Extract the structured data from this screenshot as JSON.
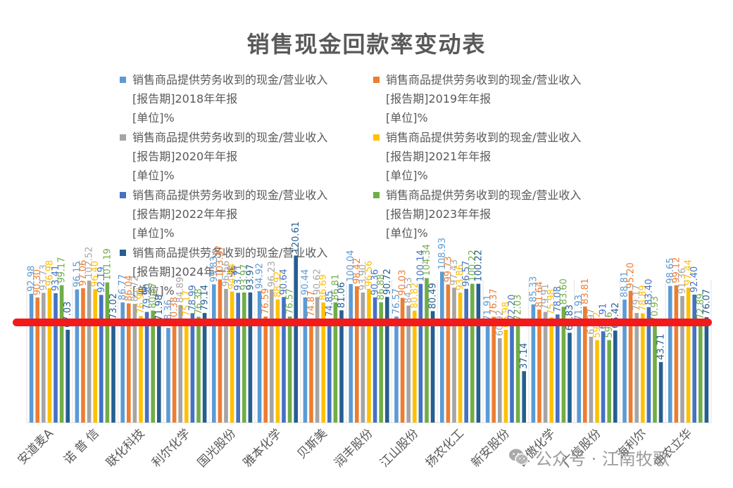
{
  "chart_data": {
    "type": "bar",
    "title": "销售现金回款率变动表",
    "categories": [
      "安道麦A",
      "诺 普 信",
      "联化科技",
      "利尔化学",
      "国光股份",
      "雅本化学",
      "贝斯美",
      "润丰股份",
      "江山股份",
      "扬农化工",
      "新安股份",
      "百傲化学",
      "广信股份",
      "海利尔",
      "中农立华"
    ],
    "series": [
      {
        "name": "销售商品提供劳务收到的现金/营业收入\n[报告期]2018年年报\n[单位]%",
        "color": "#5b9bd5",
        "values": [
          92.98,
          96.15,
          86.77,
          68.36,
          99.83,
          94.92,
          90.44,
          100.04,
          76.57,
          108.93,
          71.91,
          85.33,
          71.93,
          88.81,
          98.65
        ]
      },
      {
        "name": "销售商品提供劳务收到的现金/营业收入\n[报告期]2019年年报\n[单位]%",
        "color": "#ed7d31",
        "values": [
          90.3,
          97.06,
          86.04,
          70.38,
          103.37,
          76.59,
          74.87,
          98.42,
          90.03,
          99.73,
          76.37,
          81.64,
          83.81,
          95.2,
          99.12
        ]
      },
      {
        "name": "销售商品提供劳务收到的现金/营业收入\n[报告期]2020年年报\n[单位]%",
        "color": "#a5a5a5",
        "values": [
          93.73,
          102.52,
          85.72,
          84.89,
          96.56,
          96.23,
          90.62,
          93.9,
          84.53,
          97.43,
          60.92,
          79.91,
          61.97,
          79.17,
          91.36
        ]
      },
      {
        "name": "销售商品提供劳务收到的现金/营业收入\n[报告期]2021年年报\n[单位]%",
        "color": "#ffc000",
        "values": [
          96.98,
          96.4,
          76.91,
          75.17,
          94.64,
          88.92,
          86.69,
          96.56,
          80.82,
          93.86,
          66.98,
          75.98,
          59.52,
          78.89,
          97.44
        ]
      },
      {
        "name": "销售商品提供劳务收到的现金/营业收入\n[报告期]2022年年报\n[单位]%",
        "color": "#4472c4",
        "values": [
          93.41,
          92.19,
          79.9,
          78.99,
          93.71,
          90.64,
          74.85,
          90.36,
          100.14,
          96.57,
          72.2,
          78.08,
          65.91,
          83.4,
          92.4
        ]
      },
      {
        "name": "销售商品提供劳务收到的现金/营业收入\n[报告期]2023年年报\n[单位]%",
        "color": "#70ad47",
        "values": [
          99.17,
          101.19,
          80.87,
          76.38,
          93.97,
          76.57,
          86.81,
          86.88,
          104.34,
          100.22,
          72.03,
          83.6,
          59.56,
          70.93,
          72.89
        ]
      },
      {
        "name": "销售商品提供劳务收到的现金/营业收入\n[报告期]2024年一季\n[单位]%",
        "color": "#255e91",
        "values": [
          67.03,
          73.02,
          71.98,
          79.14,
          93.97,
          120.61,
          81.06,
          90.72,
          80.49,
          100.22,
          37.14,
          64.83,
          66.42,
          43.71,
          76.07
        ]
      }
    ],
    "legend_position": "top",
    "gridlines": true
  },
  "watermark": {
    "text": "公众号 · 江南牧歌",
    "icon": "wechat-icon"
  }
}
